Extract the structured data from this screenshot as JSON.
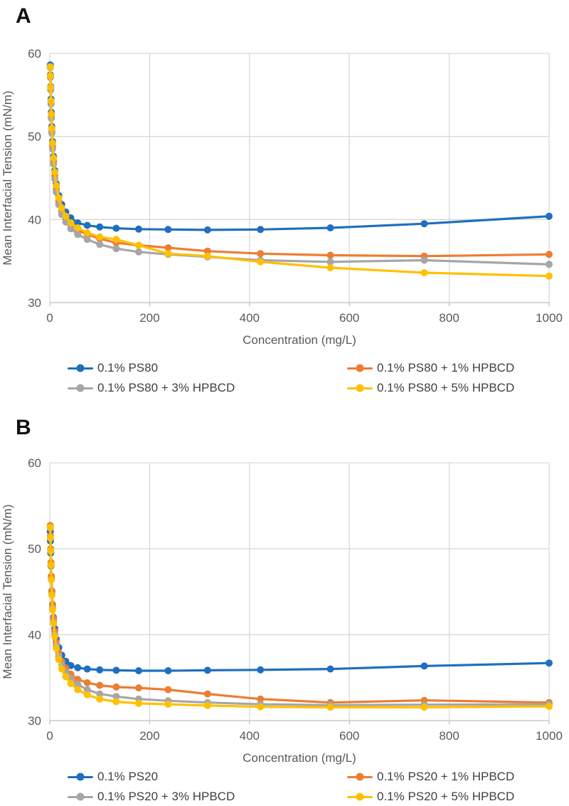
{
  "figure": {
    "panels": [
      {
        "label": "A"
      },
      {
        "label": "B"
      }
    ]
  },
  "chart_data": [
    {
      "type": "line",
      "panel": "A",
      "title": "",
      "xlabel": "Concentration (mg/L)",
      "ylabel": "Mean Interfacial Tension (mN/m)",
      "xlim": [
        0,
        1000
      ],
      "ylim": [
        30,
        60
      ],
      "xticks": [
        0,
        200,
        400,
        600,
        800,
        1000
      ],
      "yticks": [
        30,
        40,
        50,
        60
      ],
      "grid": true,
      "legend_position": "bottom",
      "x": [
        1,
        1.3,
        1.8,
        2.4,
        3.2,
        4.2,
        5.6,
        7.5,
        10,
        13,
        18,
        24,
        32,
        42,
        56,
        75,
        100,
        133,
        178,
        237,
        316,
        422,
        562,
        750,
        1000
      ],
      "series": [
        {
          "name": "0.1% PS80",
          "color": "#1F6FC0",
          "values": [
            58.6,
            57.4,
            56.0,
            54.5,
            52.9,
            51.2,
            49.4,
            47.6,
            45.9,
            44.3,
            42.9,
            41.8,
            40.9,
            40.2,
            39.6,
            39.3,
            39.1,
            38.95,
            38.85,
            38.8,
            38.75,
            38.8,
            39.0,
            39.5,
            40.4
          ]
        },
        {
          "name": "0.1% PS80 + 1% HPBCD",
          "color": "#ED7D31",
          "values": [
            58.3,
            57.2,
            55.7,
            54.1,
            52.4,
            50.6,
            48.8,
            47.0,
            45.3,
            43.7,
            42.2,
            41.0,
            40.1,
            39.3,
            38.7,
            38.2,
            37.7,
            37.2,
            36.9,
            36.6,
            36.2,
            35.9,
            35.7,
            35.6,
            35.8
          ]
        },
        {
          "name": "0.1% PS80 + 3% HPBCD",
          "color": "#A6A6A6",
          "values": [
            58.3,
            57.1,
            55.6,
            53.9,
            52.2,
            50.4,
            48.5,
            46.7,
            44.9,
            43.3,
            41.8,
            40.6,
            39.7,
            38.9,
            38.2,
            37.6,
            37.0,
            36.5,
            36.1,
            35.8,
            35.5,
            35.1,
            34.9,
            35.1,
            34.6
          ]
        },
        {
          "name": "0.1% PS80 + 5% HPBCD",
          "color": "#FFC000",
          "values": [
            58.4,
            57.3,
            55.9,
            54.3,
            52.7,
            51.0,
            49.2,
            47.4,
            45.7,
            44.1,
            42.6,
            41.4,
            40.4,
            39.6,
            39.0,
            38.4,
            37.9,
            37.6,
            36.9,
            35.9,
            35.6,
            34.9,
            34.2,
            33.6,
            33.2
          ]
        }
      ]
    },
    {
      "type": "line",
      "panel": "B",
      "title": "",
      "xlabel": "Concentration (mg/L)",
      "ylabel": "Mean Interfacial Tension (mN/m)",
      "xlim": [
        0,
        1000
      ],
      "ylim": [
        30,
        60
      ],
      "xticks": [
        0,
        200,
        400,
        600,
        800,
        1000
      ],
      "yticks": [
        30,
        40,
        50,
        60
      ],
      "grid": true,
      "legend_position": "bottom",
      "x": [
        1,
        1.3,
        1.8,
        2.4,
        3.2,
        4.2,
        5.6,
        7.5,
        10,
        13,
        18,
        24,
        32,
        42,
        56,
        75,
        100,
        133,
        178,
        237,
        316,
        422,
        562,
        750,
        1000
      ],
      "series": [
        {
          "name": "0.1% PS20",
          "color": "#1F6FC0",
          "values": [
            52.0,
            50.9,
            49.5,
            48.0,
            46.5,
            45.0,
            43.5,
            42.0,
            40.7,
            39.5,
            38.5,
            37.6,
            36.9,
            36.4,
            36.15,
            36.0,
            35.9,
            35.85,
            35.8,
            35.8,
            35.85,
            35.9,
            36.0,
            36.35,
            36.7
          ]
        },
        {
          "name": "0.1% PS20 + 1% HPBCD",
          "color": "#ED7D31",
          "values": [
            52.7,
            51.5,
            50.0,
            48.4,
            46.8,
            45.1,
            43.5,
            41.9,
            40.4,
            39.1,
            37.9,
            36.9,
            36.1,
            35.4,
            34.8,
            34.4,
            34.1,
            33.9,
            33.8,
            33.6,
            33.1,
            32.5,
            32.1,
            32.35,
            32.1
          ]
        },
        {
          "name": "0.1% PS20 + 3% HPBCD",
          "color": "#A6A6A6",
          "values": [
            52.4,
            51.2,
            49.7,
            48.1,
            46.4,
            44.7,
            43.1,
            41.5,
            40.0,
            38.7,
            37.5,
            36.5,
            35.6,
            34.9,
            34.2,
            33.6,
            33.1,
            32.8,
            32.5,
            32.3,
            32.1,
            31.9,
            31.8,
            31.85,
            31.9
          ]
        },
        {
          "name": "0.1% PS20 + 5% HPBCD",
          "color": "#FFC000",
          "values": [
            52.5,
            51.3,
            49.8,
            48.1,
            46.4,
            44.6,
            42.9,
            41.3,
            39.8,
            38.4,
            37.1,
            36.0,
            35.1,
            34.3,
            33.6,
            33.0,
            32.5,
            32.2,
            32.0,
            31.9,
            31.75,
            31.6,
            31.55,
            31.55,
            31.65
          ]
        }
      ]
    }
  ],
  "style": {
    "grid_color": "#D9D9D9",
    "axis_color": "#BFBFBF",
    "tick_text_color": "#595959",
    "legend_text_color": "#404040"
  }
}
